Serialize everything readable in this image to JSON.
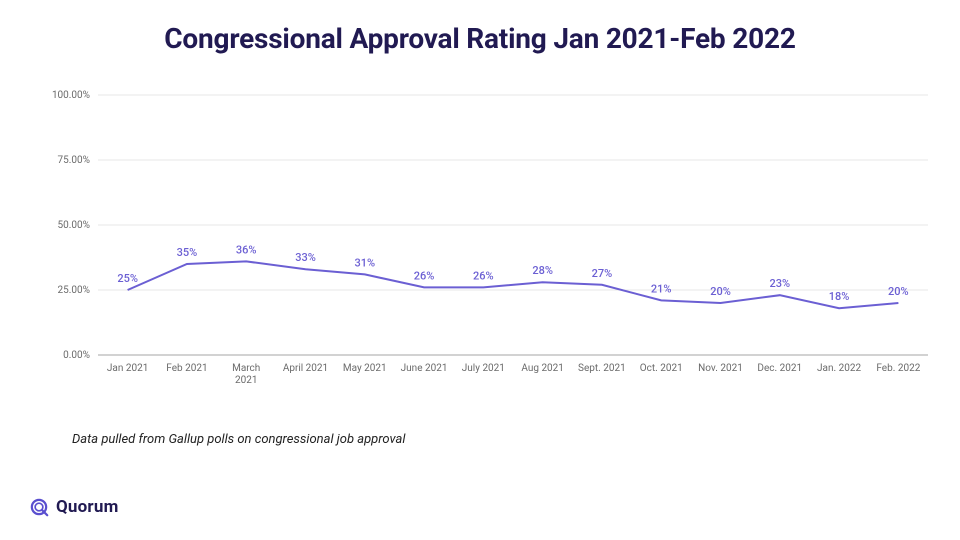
{
  "title": "Congressional Approval Rating Jan 2021-Feb 2022",
  "caption": "Data pulled from Gallup polls on congressional job approval",
  "brand": {
    "name": "Quorum",
    "logo_color": "#5a4fcf",
    "text_color": "#211a52"
  },
  "chart": {
    "type": "line",
    "background_color": "#ffffff",
    "grid_color": "#e7e7e7",
    "axis_color": "#b6b6b6",
    "line_color": "#6b5fd3",
    "line_width": 2,
    "point_label_color": "#6b5fd3",
    "point_label_fontsize": 11,
    "tick_label_color": "#6b6b6b",
    "tick_label_fontsize": 10,
    "ylim": [
      0,
      100
    ],
    "yticks": [
      0,
      25,
      50,
      75,
      100
    ],
    "ytick_labels": [
      "0.00%",
      "25.00%",
      "50.00%",
      "75.00%",
      "100.00%"
    ],
    "categories": [
      "Jan 2021",
      "Feb 2021",
      "March 2021",
      "April 2021",
      "May 2021",
      "June 2021",
      "July 2021",
      "Aug 2021",
      "Sept. 2021",
      "Oct. 2021",
      "Nov. 2021",
      "Dec. 2021",
      "Jan. 2022",
      "Feb. 2022"
    ],
    "values": [
      25,
      35,
      36,
      33,
      31,
      26,
      26,
      28,
      27,
      21,
      20,
      23,
      18,
      20
    ],
    "value_labels": [
      "25%",
      "35%",
      "36%",
      "33%",
      "31%",
      "26%",
      "26%",
      "28%",
      "27%",
      "21%",
      "20%",
      "23%",
      "18%",
      "20%"
    ],
    "title_fontsize": 28,
    "title_color": "#211a52"
  }
}
